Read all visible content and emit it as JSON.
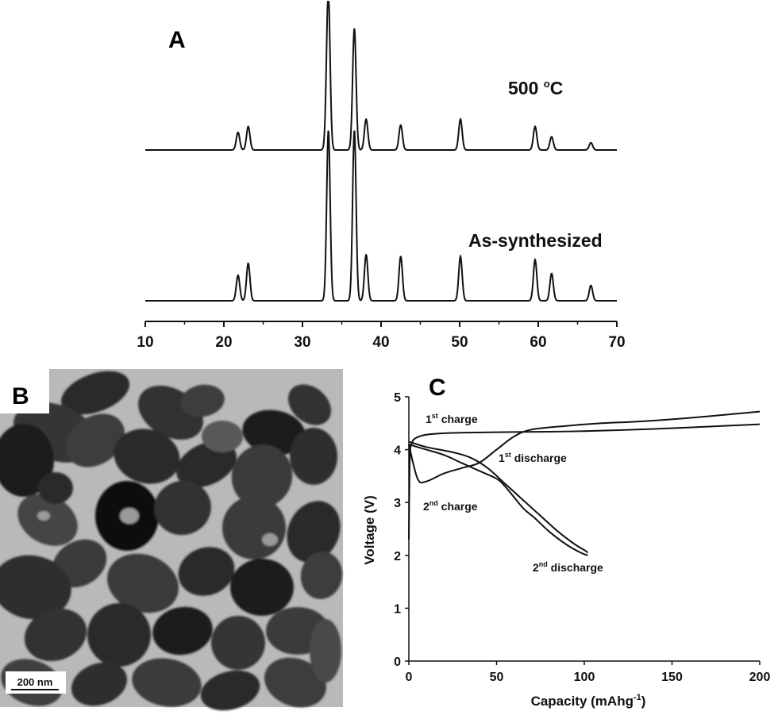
{
  "panels": {
    "a": "A",
    "b": "B",
    "c": "C"
  },
  "chart_data": [
    {
      "type": "line",
      "panel": "A",
      "xlim": [
        10,
        70
      ],
      "xticks": [
        "10",
        "20",
        "30",
        "40",
        "50",
        "60",
        "70"
      ],
      "series": [
        {
          "name": "500 oC",
          "label_main": "500 ",
          "label_sup": "o",
          "label_end": "C",
          "peaks": [
            {
              "x": 21.8,
              "h": 0.12
            },
            {
              "x": 23.1,
              "h": 0.16
            },
            {
              "x": 33.1,
              "h": 0.12
            },
            {
              "x": 33.3,
              "h": 1.0
            },
            {
              "x": 36.6,
              "h": 0.83
            },
            {
              "x": 38.1,
              "h": 0.21
            },
            {
              "x": 42.5,
              "h": 0.17
            },
            {
              "x": 50.1,
              "h": 0.21
            },
            {
              "x": 59.6,
              "h": 0.16
            },
            {
              "x": 61.7,
              "h": 0.09
            },
            {
              "x": 66.7,
              "h": 0.05
            }
          ]
        },
        {
          "name": "As-synthesized",
          "label_main": "As-synthesized",
          "peaks": [
            {
              "x": 21.8,
              "h": 0.15
            },
            {
              "x": 23.1,
              "h": 0.22
            },
            {
              "x": 33.3,
              "h": 1.0
            },
            {
              "x": 36.6,
              "h": 1.0
            },
            {
              "x": 38.1,
              "h": 0.27
            },
            {
              "x": 42.5,
              "h": 0.26
            },
            {
              "x": 50.1,
              "h": 0.26
            },
            {
              "x": 59.6,
              "h": 0.24
            },
            {
              "x": 61.7,
              "h": 0.16
            },
            {
              "x": 66.7,
              "h": 0.09
            }
          ]
        }
      ]
    },
    {
      "type": "line",
      "panel": "C",
      "xlabel_main": "Capacity (mAhg",
      "xlabel_sup": "-1",
      "xlabel_end": ")",
      "ylabel": "Voltage (V)",
      "xlim": [
        0,
        200
      ],
      "ylim": [
        0,
        5
      ],
      "xticks": [
        "0",
        "50",
        "100",
        "150",
        "200"
      ],
      "yticks": [
        "0",
        "1",
        "2",
        "3",
        "4",
        "5"
      ],
      "series": [
        {
          "name": "1st charge",
          "points": [
            [
              0,
              2.3
            ],
            [
              0.4,
              3.6
            ],
            [
              0.8,
              4.0
            ],
            [
              1.5,
              4.1
            ],
            [
              3,
              4.2
            ],
            [
              8,
              4.27
            ],
            [
              15,
              4.3
            ],
            [
              30,
              4.32
            ],
            [
              50,
              4.33
            ],
            [
              80,
              4.34
            ],
            [
              100,
              4.35
            ],
            [
              130,
              4.38
            ],
            [
              160,
              4.42
            ],
            [
              200,
              4.48
            ]
          ]
        },
        {
          "name": "1st discharge",
          "points": [
            [
              0,
              4.15
            ],
            [
              10,
              4.05
            ],
            [
              25,
              3.95
            ],
            [
              35,
              3.85
            ],
            [
              45,
              3.65
            ],
            [
              55,
              3.35
            ],
            [
              65,
              3.05
            ],
            [
              75,
              2.75
            ],
            [
              85,
              2.45
            ],
            [
              95,
              2.2
            ],
            [
              100,
              2.1
            ],
            [
              102,
              2.05
            ]
          ]
        },
        {
          "name": "2nd charge",
          "points": [
            [
              0,
              4.1
            ],
            [
              5,
              3.45
            ],
            [
              10,
              3.4
            ],
            [
              20,
              3.55
            ],
            [
              30,
              3.65
            ],
            [
              40,
              3.75
            ],
            [
              50,
              4.0
            ],
            [
              60,
              4.25
            ],
            [
              70,
              4.38
            ],
            [
              90,
              4.45
            ],
            [
              110,
              4.5
            ],
            [
              130,
              4.53
            ],
            [
              160,
              4.6
            ],
            [
              200,
              4.72
            ]
          ]
        },
        {
          "name": "2nd discharge",
          "points": [
            [
              0,
              4.1
            ],
            [
              10,
              4.0
            ],
            [
              20,
              3.9
            ],
            [
              30,
              3.75
            ],
            [
              40,
              3.6
            ],
            [
              50,
              3.45
            ],
            [
              55,
              3.3
            ],
            [
              65,
              2.9
            ],
            [
              72,
              2.7
            ],
            [
              80,
              2.45
            ],
            [
              90,
              2.2
            ],
            [
              98,
              2.05
            ],
            [
              102,
              2.0
            ]
          ]
        }
      ],
      "annotations": [
        {
          "main": "1",
          "sup": "st",
          "end": " charge"
        },
        {
          "main": "1",
          "sup": "st",
          "end": "  discharge"
        },
        {
          "main": "2",
          "sup": "nd",
          "end": "  charge"
        },
        {
          "main": "2",
          "sup": "nd",
          "end": "  discharge"
        }
      ]
    }
  ],
  "image_b": {
    "scale_bar": "200 nm"
  }
}
